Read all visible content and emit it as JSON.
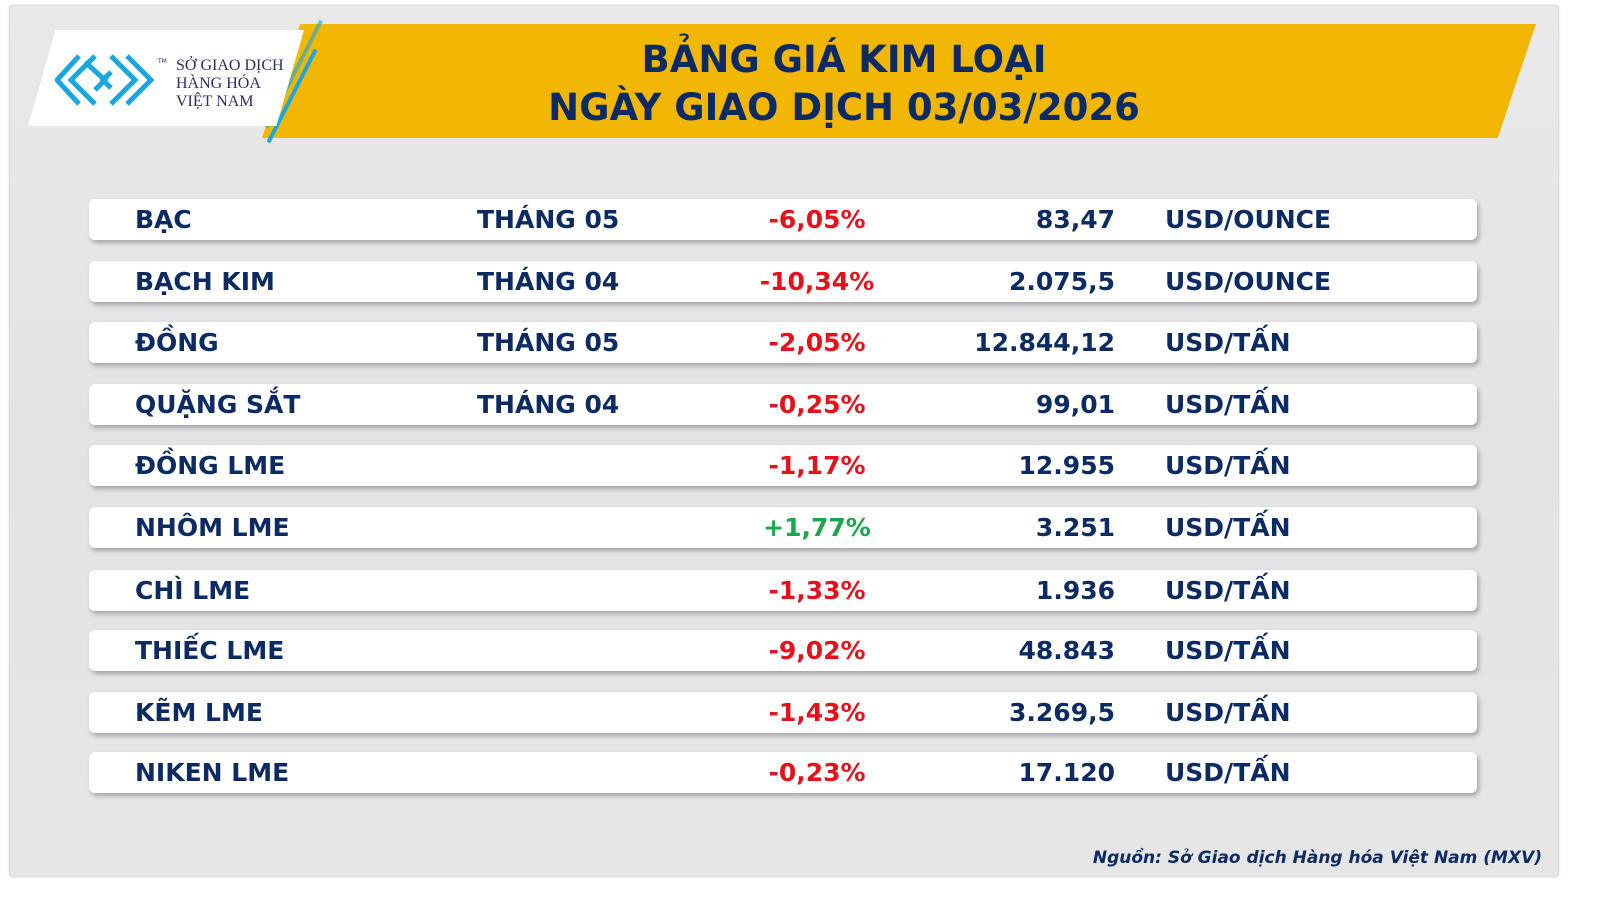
{
  "logo": {
    "lines": [
      "SỞ GIAO DỊCH",
      "HÀNG HÓA",
      "VIỆT NAM"
    ],
    "tm": "TM"
  },
  "header": {
    "title_line1": "BẢNG GIÁ KIM LOẠI",
    "title_line2": "NGÀY GIAO DỊCH 03/03/2026"
  },
  "colors": {
    "banner": "#f2b705",
    "text": "#0c2a63",
    "negative": "#e8101a",
    "positive": "#1aa64a",
    "logo_blue": "#1aa7e0"
  },
  "rows": [
    {
      "name": "BẠC",
      "month": "THÁNG 05",
      "change": "-6,05%",
      "price": "83,47",
      "unit": "USD/OUNCE"
    },
    {
      "name": "BẠCH KIM",
      "month": "THÁNG 04",
      "change": "-10,34%",
      "price": "2.075,5",
      "unit": "USD/OUNCE"
    },
    {
      "name": "ĐỒNG",
      "month": "THÁNG 05",
      "change": "-2,05%",
      "price": "12.844,12",
      "unit": "USD/TẤN"
    },
    {
      "name": "QUẶNG SẮT",
      "month": "THÁNG 04",
      "change": "-0,25%",
      "price": "99,01",
      "unit": "USD/TẤN"
    },
    {
      "name": "ĐỒNG LME",
      "month": "",
      "change": "-1,17%",
      "price": "12.955",
      "unit": "USD/TẤN"
    },
    {
      "name": "NHÔM LME",
      "month": "",
      "change": "+1,77%",
      "price": "3.251",
      "unit": "USD/TẤN"
    },
    {
      "name": "CHÌ LME",
      "month": "",
      "change": "-1,33%",
      "price": "1.936",
      "unit": "USD/TẤN"
    },
    {
      "name": "THIẾC LME",
      "month": "",
      "change": "-9,02%",
      "price": "48.843",
      "unit": "USD/TẤN"
    },
    {
      "name": "KẼM LME",
      "month": "",
      "change": "-1,43%",
      "price": "3.269,5",
      "unit": "USD/TẤN"
    },
    {
      "name": "NIKEN LME",
      "month": "",
      "change": "-0,23%",
      "price": "17.120",
      "unit": "USD/TẤN"
    }
  ],
  "footer": {
    "source": "Nguồn: Sở Giao dịch Hàng hóa Việt Nam (MXV)"
  }
}
